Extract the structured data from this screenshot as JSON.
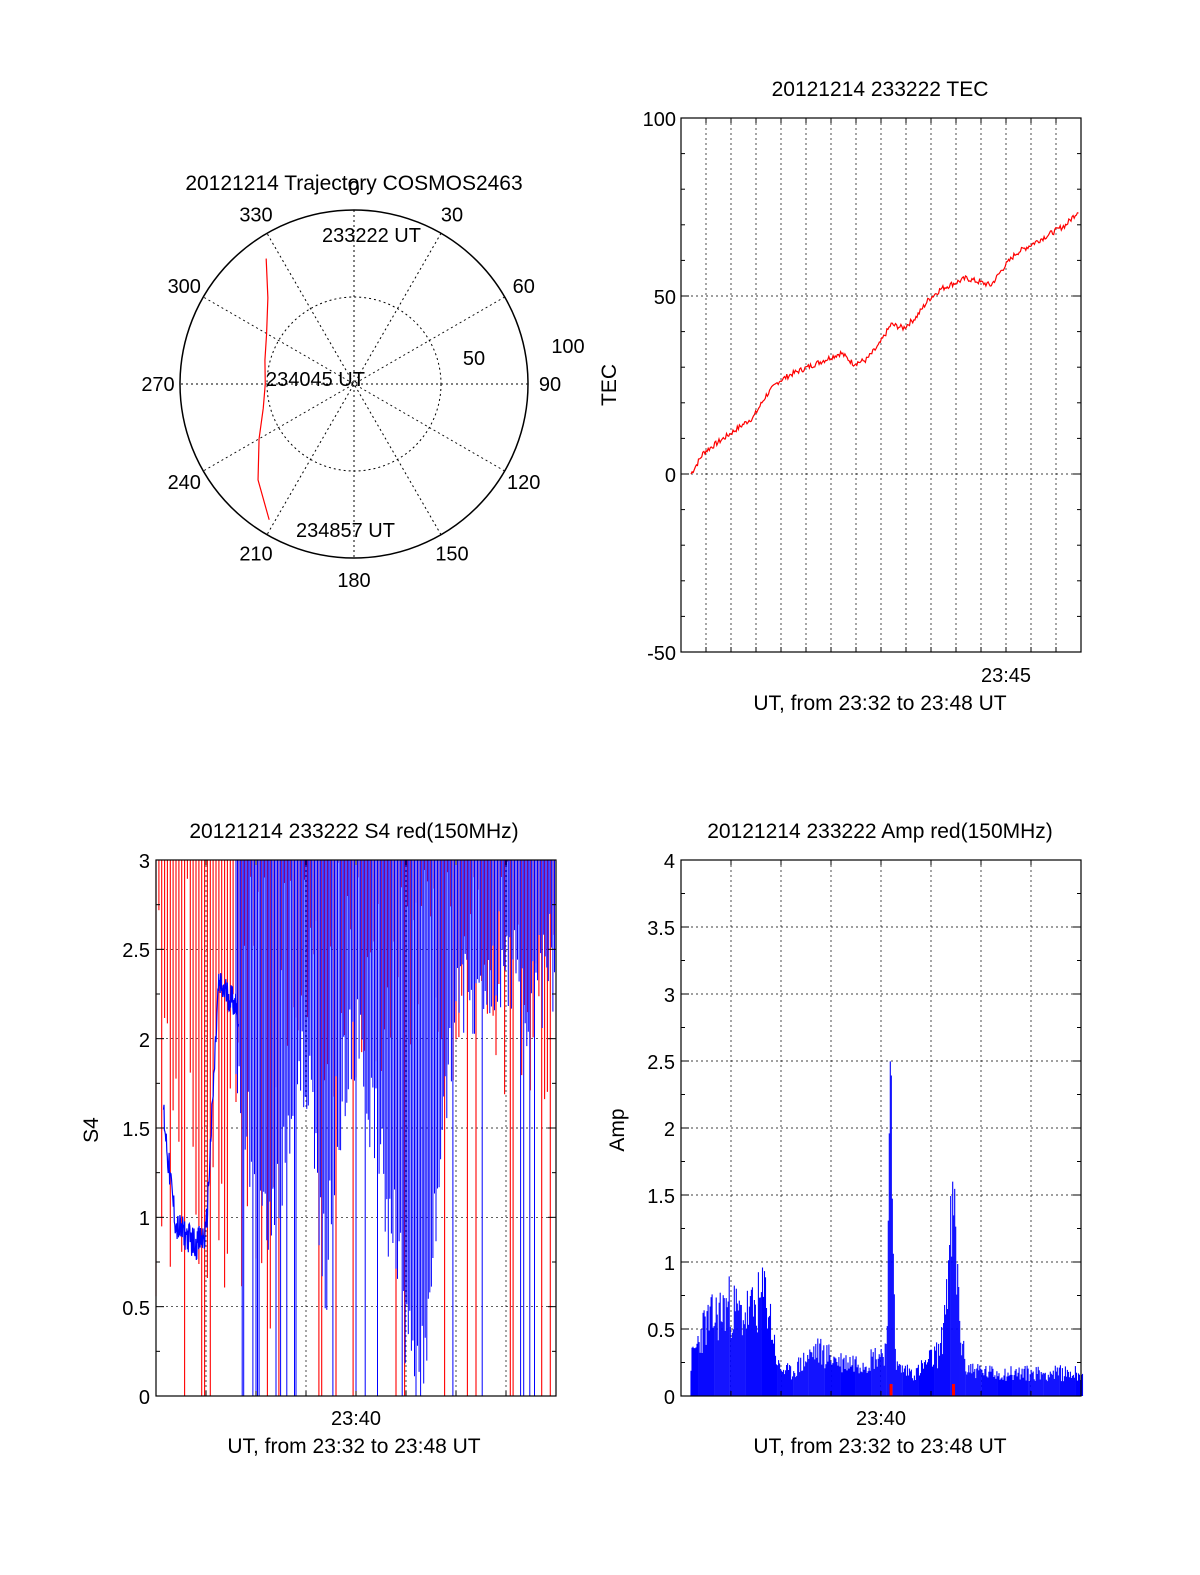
{
  "chart_data": [
    {
      "id": "trajectory",
      "type": "polar",
      "title": "20121214 Trajectory COSMOS2463",
      "azimuth_labels": [
        "0",
        "30",
        "60",
        "90",
        "120",
        "150",
        "180",
        "210",
        "240",
        "270",
        "300",
        "330"
      ],
      "radial_labels": [
        "50",
        "100"
      ],
      "radial_max": 100,
      "grid": true,
      "line_color": "#ff0000",
      "track": {
        "az": [
          325,
          315,
          300,
          285,
          270,
          255,
          240,
          225,
          212
        ],
        "r": [
          88,
          70,
          58,
          53,
          51,
          54,
          63,
          78,
          92
        ]
      },
      "annotations": [
        {
          "text": "233222 UT",
          "az": 325,
          "r": 88
        },
        {
          "text": "234045 UT",
          "az": 270,
          "r": 51
        },
        {
          "text": "234857 UT",
          "az": 212,
          "r": 92
        }
      ]
    },
    {
      "id": "tec",
      "type": "line",
      "title": "20121214 233222 TEC",
      "xlabel": "UT, from 23:32 to 23:48 UT",
      "ylabel": "TEC",
      "ylim": [
        -50,
        100
      ],
      "yticks": [
        "-50",
        "0",
        "50",
        "100"
      ],
      "xticks": [
        "23:45"
      ],
      "grid": true,
      "line_color": "#ff0000",
      "series": [
        {
          "x_min": [
            0,
            0.5,
            1.5,
            2.5,
            3,
            3.5,
            4,
            5,
            6,
            6.5,
            7,
            7.5,
            8,
            8.5,
            9,
            9.5,
            10,
            11,
            12,
            12.5,
            13,
            14,
            15,
            15.5
          ],
          "values": [
            0,
            6,
            11,
            16,
            22,
            26,
            28,
            31,
            34,
            31,
            32,
            36,
            42,
            41,
            44,
            49,
            52,
            55,
            53,
            58,
            62,
            66,
            70,
            74
          ]
        }
      ]
    },
    {
      "id": "s4",
      "type": "line",
      "title": "20121214 233222 S4 red(150MHz)",
      "xlabel": "UT, from 23:32 to 23:48 UT",
      "ylabel": "S4",
      "ylim": [
        0,
        3
      ],
      "yticks": [
        "0",
        "0.5",
        "1",
        "1.5",
        "2",
        "2.5",
        "3"
      ],
      "xticks": [
        "23:40"
      ],
      "grid": true,
      "colors": {
        "red": "#ff0000",
        "blue": "#0000ff"
      },
      "series": [
        {
          "name": "blue",
          "x_min": [
            0.3,
            0.5,
            0.8,
            1.2,
            1.6,
            2,
            2.5,
            3.2,
            4.5,
            5,
            6,
            6.8,
            7.2,
            8,
            9.5,
            10.5,
            11,
            12,
            13,
            14,
            15,
            15.7
          ],
          "values": [
            1.6,
            1.3,
            0.95,
            0.9,
            0.85,
            0.9,
            2.3,
            2.2,
            1.1,
            1.6,
            2.2,
            0.9,
            1.8,
            2.4,
            1.2,
            0.3,
            1.0,
            2.6,
            2.5,
            2.8,
            2.5,
            2.7
          ]
        }
      ]
    },
    {
      "id": "amp",
      "type": "area",
      "title": "20121214 233222 Amp red(150MHz)",
      "xlabel": "UT, from 23:32 to 23:48 UT",
      "ylabel": "Amp",
      "ylim": [
        0,
        4
      ],
      "yticks": [
        "0",
        "0.5",
        "1",
        "1.5",
        "2",
        "2.5",
        "3",
        "3.5",
        "4"
      ],
      "xticks": [
        "23:40"
      ],
      "grid": true,
      "colors": {
        "red": "#ff0000",
        "blue": "#0000ff"
      },
      "series": [
        {
          "name": "blue",
          "x_min": [
            0,
            0.5,
            1,
            1.5,
            2,
            2.5,
            3,
            3.5,
            4,
            5,
            6,
            7,
            7.8,
            8,
            8.2,
            9,
            10,
            10.5,
            10.8,
            11,
            12,
            13,
            14,
            15,
            15.7
          ],
          "values": [
            0.3,
            0.6,
            0.7,
            0.8,
            0.7,
            0.75,
            0.9,
            0.25,
            0.2,
            0.4,
            0.3,
            0.3,
            0.4,
            2.55,
            0.25,
            0.2,
            0.4,
            1.6,
            0.5,
            0.25,
            0.2,
            0.2,
            0.2,
            0.2,
            0.2
          ]
        }
      ]
    }
  ]
}
